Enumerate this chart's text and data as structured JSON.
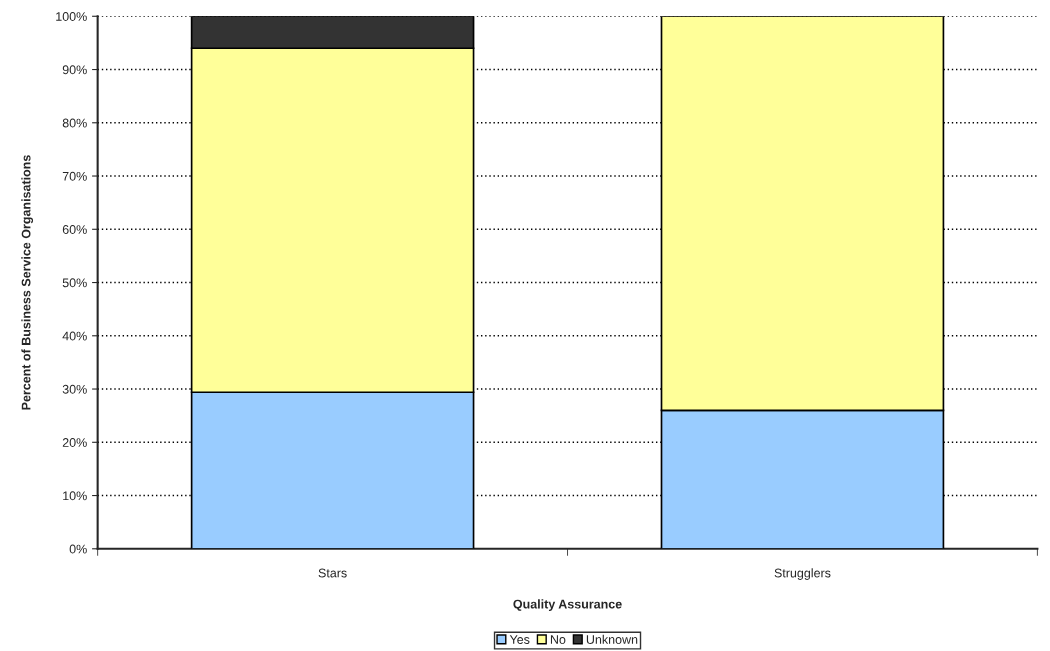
{
  "chart_data": {
    "type": "bar",
    "stacked": true,
    "xlabel": "Quality Assurance",
    "ylabel": "Percent of Business Service Organisations",
    "categories": [
      "Stars",
      "Strugglers"
    ],
    "series": [
      {
        "name": "Yes",
        "color": "#99ccff",
        "values": [
          29.4,
          26
        ]
      },
      {
        "name": "No",
        "color": "#ffff99",
        "values": [
          64.6,
          74
        ]
      },
      {
        "name": "Unknown",
        "color": "#333333",
        "values": [
          6,
          null
        ]
      }
    ],
    "ylim": [
      0,
      100
    ],
    "yticks": [
      {
        "value": 0,
        "label": "0%"
      },
      {
        "value": 10,
        "label": "10%"
      },
      {
        "value": 20,
        "label": "20%"
      },
      {
        "value": 30,
        "label": "30%"
      },
      {
        "value": 40,
        "label": "40%"
      },
      {
        "value": 50,
        "label": "50%"
      },
      {
        "value": 60,
        "label": "60%"
      },
      {
        "value": 70,
        "label": "70%"
      },
      {
        "value": 80,
        "label": "80%"
      },
      {
        "value": 90,
        "label": "90%"
      },
      {
        "value": 100,
        "label": "100%"
      }
    ],
    "grid": "y",
    "legend": "bottom"
  }
}
